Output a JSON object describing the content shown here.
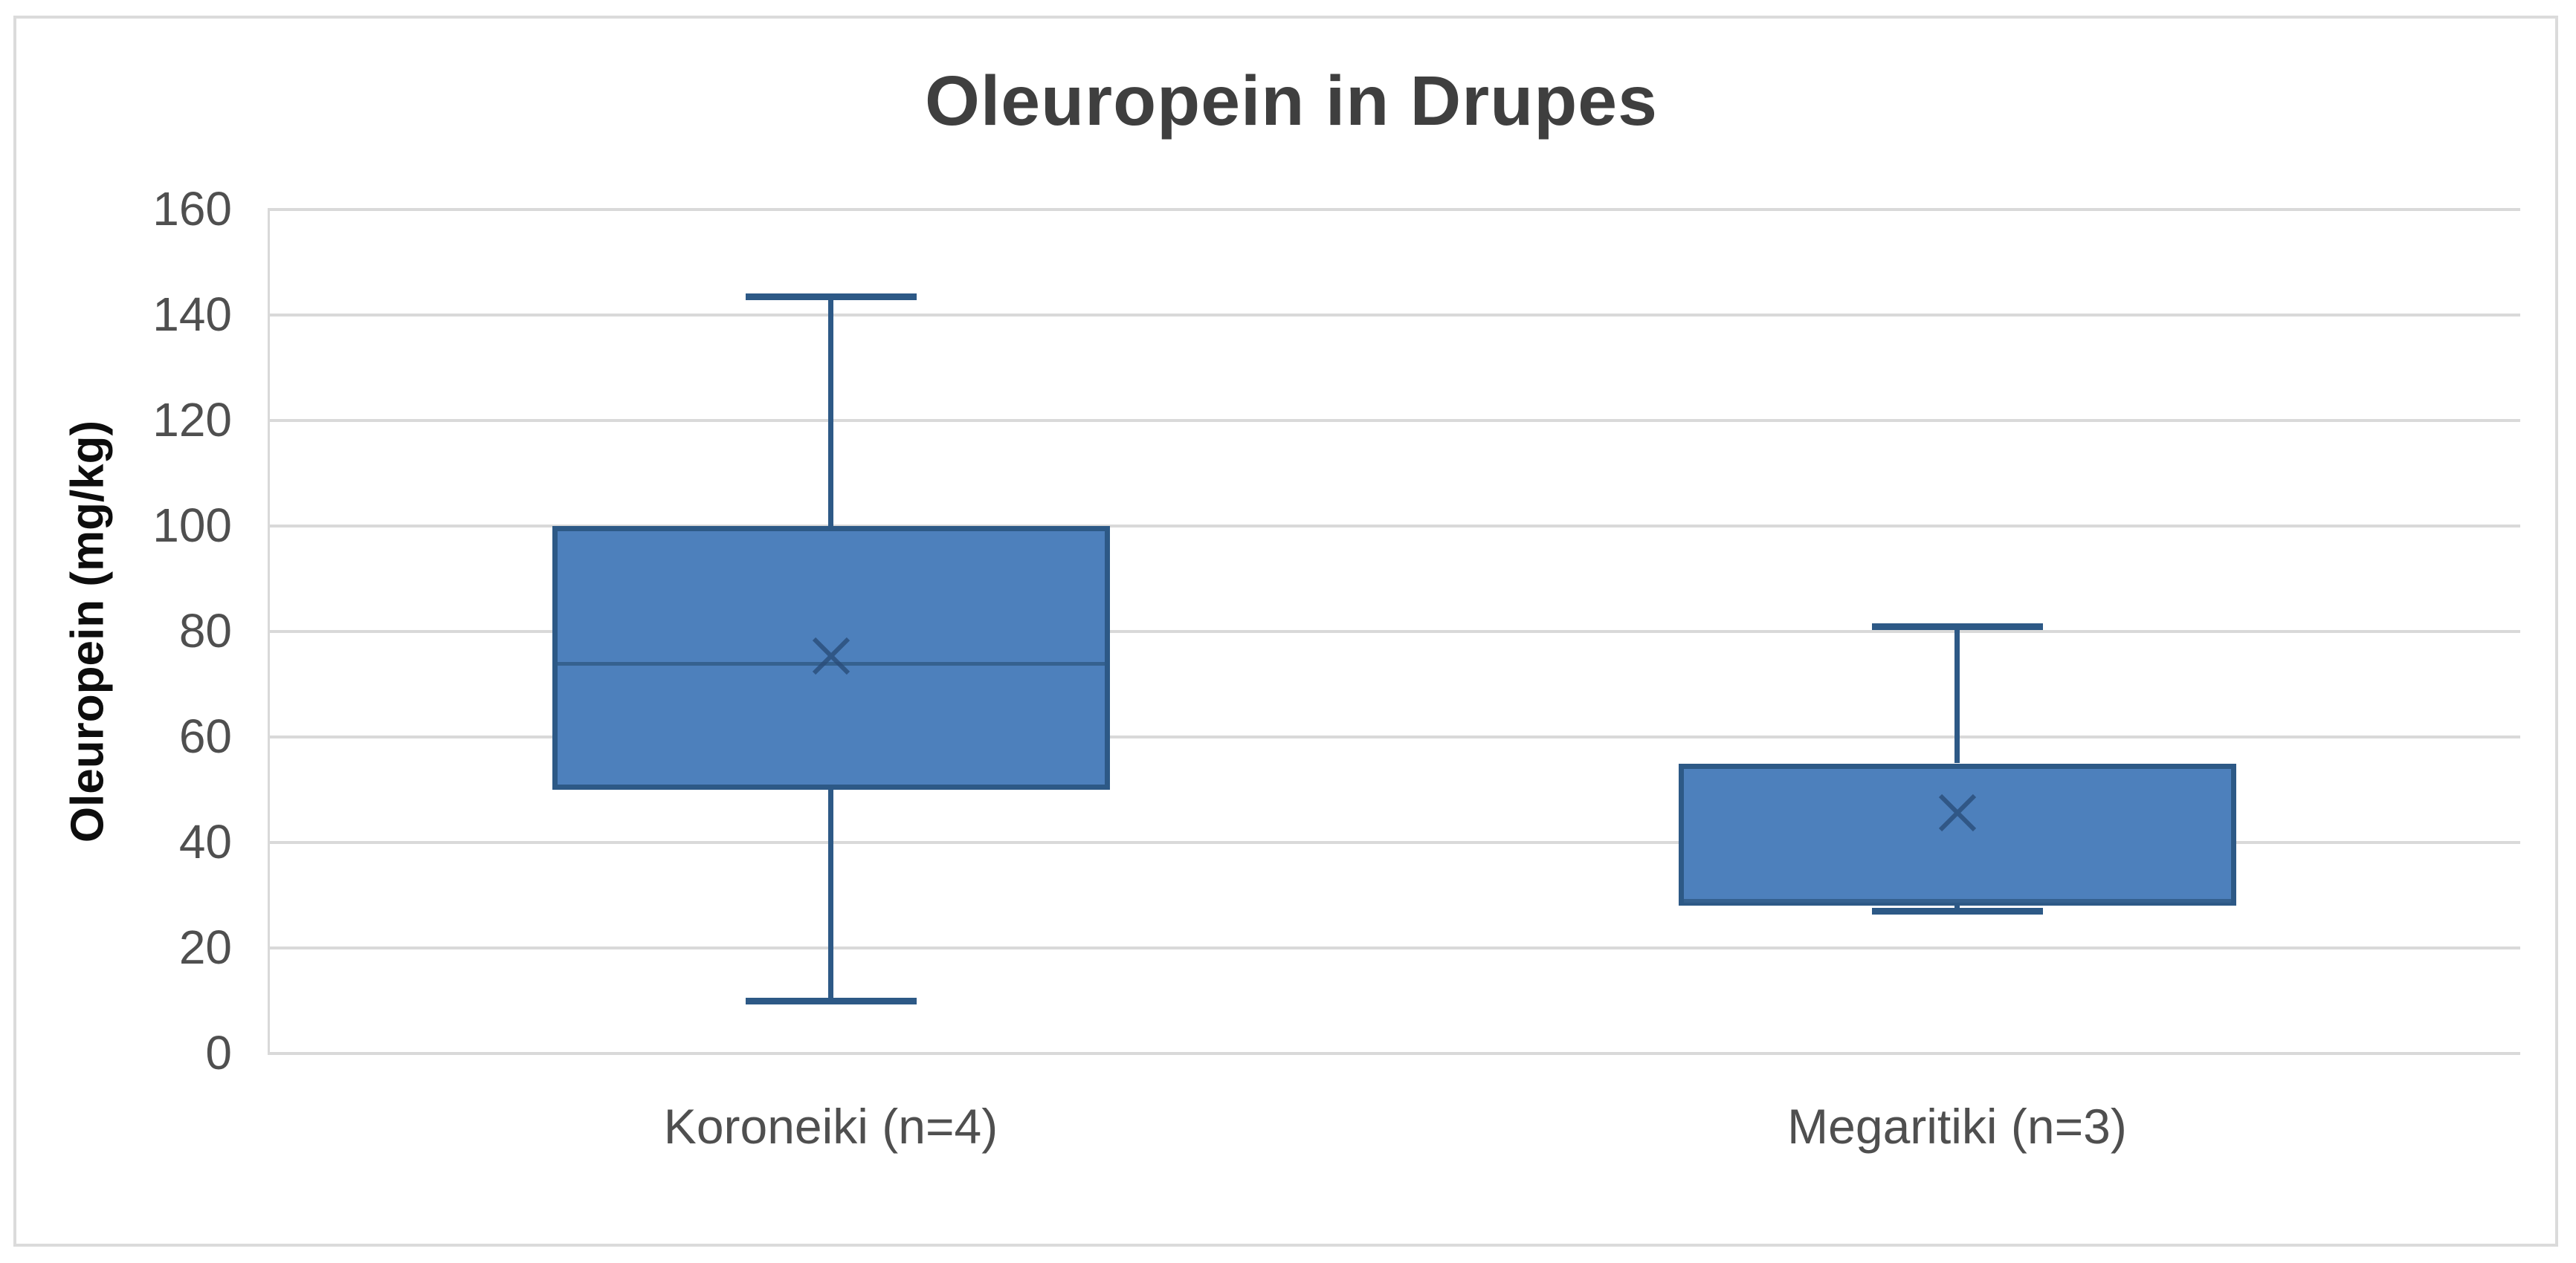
{
  "chart_data": {
    "type": "box",
    "title": "Oleuropein in Drupes",
    "xlabel": "",
    "ylabel": "Oleuropein (mg/kg)",
    "ylim": [
      0,
      160
    ],
    "yticks": [
      0,
      20,
      40,
      60,
      80,
      100,
      120,
      140,
      160
    ],
    "grid": true,
    "legend": "none",
    "categories": [
      "Koroneiki (n=4)",
      "Megaritiki (n=3)"
    ],
    "series": [
      {
        "name": "Koroneiki (n=4)",
        "min": 10,
        "q1": 50,
        "median": 74,
        "mean": 75.4,
        "q3": 100,
        "max": 143.5
      },
      {
        "name": "Megaritiki (n=3)",
        "min": 27,
        "q1": 28,
        "median": 29,
        "mean": 45.7,
        "q3": 55,
        "max": 81
      }
    ],
    "colors": {
      "box_fill": "#4d80bc",
      "box_border": "#2d5986",
      "median_line": "#35618f",
      "mean_marker": "#2a4d79",
      "gridline": "#d9d9d9",
      "axis_label": "#4f4f4f",
      "title": "#3f3f3f",
      "canvas_border": "#dbdbdb",
      "background": "#ffffff"
    }
  }
}
